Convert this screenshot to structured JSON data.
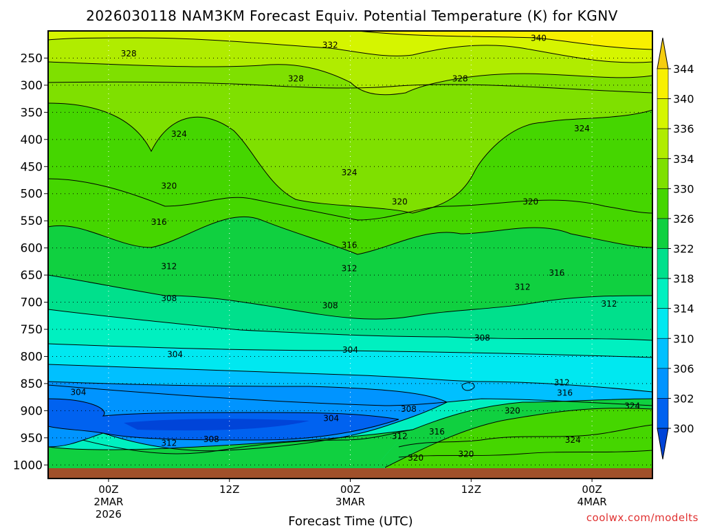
{
  "chart_data": {
    "type": "contour",
    "title": "2026030118 NAM3KM Forecast Equiv. Potential Temperature (K) for KGNV",
    "xlabel": "Forecast Time (UTC)",
    "ylabel": "",
    "watermark": "coolwx.com/modelts",
    "x_ticks": [
      {
        "hours": 6,
        "line1": "00Z",
        "line2": "2MAR",
        "line3": "2026"
      },
      {
        "hours": 18,
        "line1": "12Z",
        "line2": "",
        "line3": ""
      },
      {
        "hours": 30,
        "line1": "00Z",
        "line2": "3MAR",
        "line3": ""
      },
      {
        "hours": 42,
        "line1": "12Z",
        "line2": "",
        "line3": ""
      },
      {
        "hours": 54,
        "line1": "00Z",
        "line2": "4MAR",
        "line3": ""
      }
    ],
    "xlim_hours": [
      0,
      60
    ],
    "y_ticks": [
      "250",
      "300",
      "350",
      "400",
      "450",
      "500",
      "550",
      "600",
      "650",
      "700",
      "750",
      "800",
      "850",
      "900",
      "950",
      "1000"
    ],
    "y_tick_values": [
      250,
      300,
      350,
      400,
      450,
      500,
      550,
      600,
      650,
      700,
      750,
      800,
      850,
      900,
      950,
      1000
    ],
    "ylim_hpa": [
      200,
      1025
    ],
    "colorbar": {
      "labels": [
        "344",
        "340",
        "336",
        "334",
        "330",
        "326",
        "322",
        "318",
        "314",
        "310",
        "306",
        "302",
        "300"
      ],
      "colors": [
        "#f5cd10",
        "#f8f000",
        "#d5f500",
        "#b0ec00",
        "#7fe000",
        "#45d600",
        "#10d040",
        "#00e08c",
        "#00f0c0",
        "#00e8f0",
        "#00c0ff",
        "#0094ff",
        "#0062f0",
        "#0044d8"
      ]
    },
    "contour_labels": [
      {
        "text": "340",
        "hours": 48.7,
        "hpa": 213
      },
      {
        "text": "332",
        "hours": 28.0,
        "hpa": 226
      },
      {
        "text": "328",
        "hours": 8.0,
        "hpa": 242
      },
      {
        "text": "328",
        "hours": 24.6,
        "hpa": 288
      },
      {
        "text": "328",
        "hours": 40.9,
        "hpa": 288
      },
      {
        "text": "324",
        "hours": 13.0,
        "hpa": 390
      },
      {
        "text": "324",
        "hours": 29.9,
        "hpa": 461
      },
      {
        "text": "324",
        "hours": 53.0,
        "hpa": 380
      },
      {
        "text": "320",
        "hours": 12.0,
        "hpa": 486
      },
      {
        "text": "320",
        "hours": 34.9,
        "hpa": 515
      },
      {
        "text": "320",
        "hours": 47.9,
        "hpa": 515
      },
      {
        "text": "316",
        "hours": 11.0,
        "hpa": 552
      },
      {
        "text": "316",
        "hours": 29.9,
        "hpa": 595
      },
      {
        "text": "316",
        "hours": 50.5,
        "hpa": 646
      },
      {
        "text": "312",
        "hours": 12.0,
        "hpa": 634
      },
      {
        "text": "312",
        "hours": 29.9,
        "hpa": 638
      },
      {
        "text": "312",
        "hours": 47.1,
        "hpa": 672
      },
      {
        "text": "312",
        "hours": 55.7,
        "hpa": 703
      },
      {
        "text": "308",
        "hours": 12.0,
        "hpa": 693
      },
      {
        "text": "308",
        "hours": 28.0,
        "hpa": 706
      },
      {
        "text": "308",
        "hours": 43.1,
        "hpa": 766
      },
      {
        "text": "304",
        "hours": 12.6,
        "hpa": 796
      },
      {
        "text": "304",
        "hours": 30.0,
        "hpa": 788
      },
      {
        "text": "304",
        "hours": 3.0,
        "hpa": 866
      },
      {
        "text": "304",
        "hours": 28.1,
        "hpa": 914
      },
      {
        "text": "308",
        "hours": 35.8,
        "hpa": 897
      },
      {
        "text": "308",
        "hours": 16.2,
        "hpa": 953
      },
      {
        "text": "312",
        "hours": 12.0,
        "hpa": 960
      },
      {
        "text": "312",
        "hours": 34.9,
        "hpa": 947
      },
      {
        "text": "316",
        "hours": 51.3,
        "hpa": 867
      },
      {
        "text": "312",
        "hours": 51.0,
        "hpa": 848
      },
      {
        "text": "320",
        "hours": 46.1,
        "hpa": 900
      },
      {
        "text": "324",
        "hours": 58.0,
        "hpa": 891
      },
      {
        "text": "316",
        "hours": 38.6,
        "hpa": 939
      },
      {
        "text": "324",
        "hours": 52.1,
        "hpa": 954
      },
      {
        "text": "320",
        "hours": 36.5,
        "hpa": 987
      },
      {
        "text": "320",
        "hours": 41.5,
        "hpa": 980
      }
    ]
  }
}
